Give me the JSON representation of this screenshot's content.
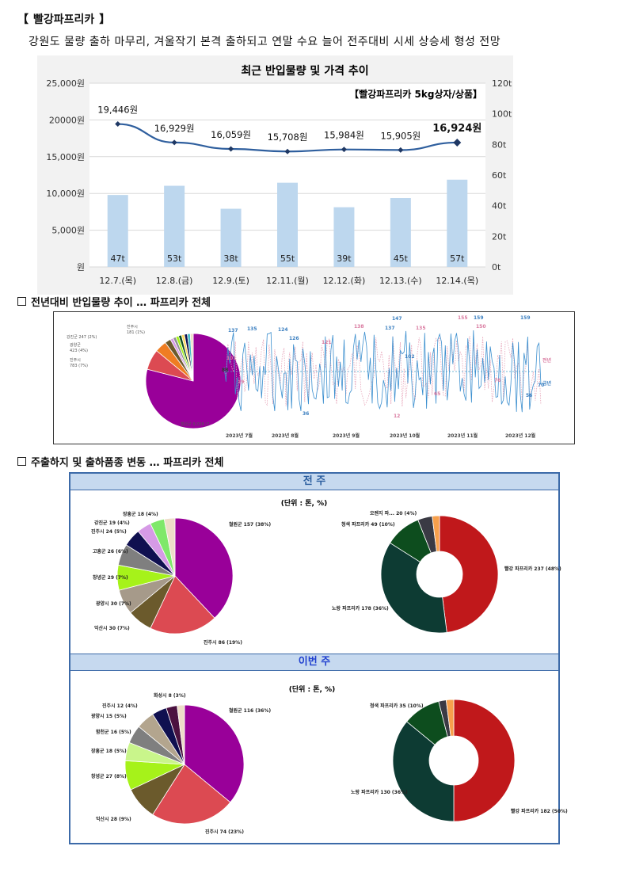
{
  "header": {
    "bracket_open": "【",
    "title": "빨강파프리카",
    "bracket_close": "】",
    "summary": "강원도 물량 출하 마무리, 겨울작기 본격 출하되고 연말 수요 늘어 전주대비 시세 상승세 형성 전망"
  },
  "chart_data": [
    {
      "type": "bar",
      "title": "최근 반입물량 및 가격 추이",
      "note": "【빨강파프리카 5kg상자/상품】",
      "categories": [
        "12.7.(목)",
        "12.8.(금)",
        "12.9.(토)",
        "12.11.(월)",
        "12.12.(화)",
        "12.13.(수)",
        "12.14.(목)"
      ],
      "series": [
        {
          "type": "bar",
          "axis": "right",
          "values": [
            47,
            53,
            38,
            55,
            39,
            45,
            57
          ],
          "labels": [
            "47t",
            "53t",
            "38t",
            "55t",
            "39t",
            "45t",
            "57t"
          ]
        },
        {
          "type": "line",
          "axis": "left",
          "values": [
            19446,
            16929,
            16059,
            15708,
            15984,
            15905,
            16924
          ],
          "labels": [
            "19,446원",
            "16,929원",
            "16,059원",
            "15,708원",
            "15,984원",
            "15,905원",
            "16,924원"
          ]
        }
      ],
      "y_left_ticks": [
        "원",
        "5,000원",
        "10,000원",
        "15,000원",
        "20000원",
        "25,000원"
      ],
      "y_right_ticks": [
        "0t",
        "20t",
        "40t",
        "60t",
        "80t",
        "100t",
        "120t"
      ],
      "ylim_left": [
        0,
        25000
      ],
      "ylim_right": [
        0,
        120
      ],
      "grid": true,
      "colors": {
        "bar": "#bdd7ee",
        "line": "#2f5f9e"
      }
    }
  ],
  "section1": {
    "title": "전년대비 반입물량 추이 … 파프리카 전체",
    "pie_labels": [
      "진주시",
      "181 (1%)",
      "강진군 247 (2%)",
      "광양군",
      "423 (4%)",
      "진주시",
      "783 (7%)",
      "철원군 9,038 (7"
    ],
    "line_labels": [
      "137",
      "135",
      "124",
      "126",
      "147",
      "137",
      "102",
      "155",
      "159",
      "159",
      "76",
      "70",
      "56",
      "36",
      "101",
      "88",
      "19",
      "121",
      "138",
      "135",
      "150",
      "65",
      "12",
      "전년",
      "금년"
    ],
    "months": [
      "2023년 7월",
      "2023년 8월",
      "2023년 9월",
      "2023년 10월",
      "2023년 11월",
      "2023년 12월"
    ]
  },
  "section2": {
    "title": "주출하지 및 출하품종 변동 … 파프리카 전체",
    "prev_week": {
      "header": "전 주",
      "unit": "(단위 : 톤, %)",
      "region_labels": [
        "철원군 157 (38%)",
        "진주시 86 (19%)",
        "익산시 30 (7%)",
        "광양시 30 (7%)",
        "창녕군 29 (7%)",
        "고흥군 26 (6%)",
        "진주시 24 (5%)",
        "강진군 19 (4%)",
        "장흥군 18 (4%)"
      ],
      "variety_labels": [
        "빨강 파프리카 237 (48%)",
        "노랑 파프리카 178 (36%)",
        "청색 파프리카 49 (10%)",
        "오렌지 파... 20 (4%)"
      ]
    },
    "this_week": {
      "header": "이번 주",
      "unit": "(단위 : 톤, %)",
      "region_labels": [
        "철원군 116 (36%)",
        "진주시 74 (23%)",
        "익산시 28 (9%)",
        "창녕군 27 (8%)",
        "장흥군 18 (5%)",
        "함천군 16 (5%)",
        "광양시 15 (5%)",
        "진주시 12 (4%)",
        "화성시 8 (3%)"
      ],
      "variety_labels": [
        "빨강 파프리카 182 (50%)",
        "노랑 파프리카 130 (36%)",
        "청색 파프리카 35 (10%)"
      ]
    }
  },
  "pies": {
    "prev_region": {
      "values": [
        38,
        19,
        7,
        7,
        7,
        6,
        5,
        4,
        4,
        3
      ],
      "colors": [
        "#990099",
        "#dc4a52",
        "#6b5a2c",
        "#a69a8a",
        "#a6f21a",
        "#7f7f7f",
        "#101050",
        "#d69ae6",
        "#7fe86a",
        "#eeddc8"
      ]
    },
    "prev_variety": {
      "values": [
        48,
        36,
        10,
        4,
        2
      ],
      "colors": [
        "#c0181b",
        "#0d3b33",
        "#0d4d1e",
        "#3a3a44",
        "#f7a04c"
      ]
    },
    "this_region": {
      "values": [
        36,
        23,
        9,
        8,
        5,
        5,
        5,
        4,
        3,
        2
      ],
      "colors": [
        "#990099",
        "#dc4a52",
        "#6b5a2c",
        "#a6f21a",
        "#c9f58b",
        "#7f7f7f",
        "#b3a58e",
        "#101050",
        "#4b1240",
        "#eeddc8"
      ]
    },
    "this_variety": {
      "values": [
        50,
        36,
        10,
        2,
        2
      ],
      "colors": [
        "#c0181b",
        "#0d3b33",
        "#0d4d1e",
        "#3a3a44",
        "#f7a04c"
      ]
    },
    "year_region": {
      "values": [
        79,
        7,
        4,
        2,
        1,
        1,
        1,
        1,
        1,
        1,
        1,
        1
      ],
      "colors": [
        "#990099",
        "#dc4a52",
        "#ef7d22",
        "#6b5a2c",
        "#d69ae6",
        "#8f8f8f",
        "#a6f21a",
        "#0d4d1e",
        "#ffd966",
        "#101050",
        "#46bdc6",
        "#eeddc8"
      ]
    }
  }
}
